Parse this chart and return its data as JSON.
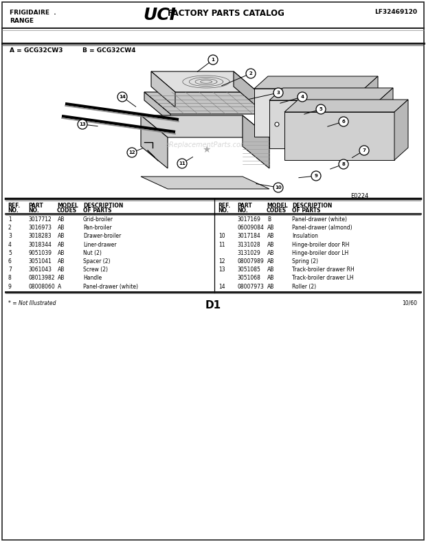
{
  "title_left_line1": "FRIGIDAIRE  .",
  "title_left_line2": "RANGE",
  "title_logo": "UCI",
  "title_center": "FACTORY PARTS CATALOG",
  "title_right": "LF32469120",
  "model_line_a": "A = GCG32CW3",
  "model_line_b": "B = GCG32CW4",
  "diagram_code": "E0224",
  "page_label": "D1",
  "page_date": "10/60",
  "footnote": "* = Not Illustrated",
  "bg_color": "#ffffff",
  "left_parts": [
    [
      "1",
      "3017712",
      "AB",
      "Grid-broiler"
    ],
    [
      "2",
      "3016973",
      "AB",
      "Pan-broiler"
    ],
    [
      "3",
      "3018283",
      "AB",
      "Drawer-broiler"
    ],
    [
      "4",
      "3018344",
      "AB",
      "Liner-drawer"
    ],
    [
      "5",
      "9051039",
      "AB",
      "Nut (2)"
    ],
    [
      "6",
      "3051041",
      "AB",
      "Spacer (2)"
    ],
    [
      "7",
      "3061043",
      "AB",
      "Screw (2)"
    ],
    [
      "8",
      "08013982",
      "AB",
      "Handle"
    ],
    [
      "9",
      "08008060",
      "A",
      "Panel-drawer (white)"
    ]
  ],
  "right_parts": [
    [
      "",
      "3017169",
      "B",
      "Panel-drawer (white)"
    ],
    [
      "",
      "06009084",
      "AB",
      "Panel-drawer (almond)"
    ],
    [
      "10",
      "3017184",
      "AB",
      "Insulation"
    ],
    [
      "11",
      "3131028",
      "AB",
      "Hinge-broiler door RH"
    ],
    [
      "",
      "3131029",
      "AB",
      "Hinge-broiler door LH"
    ],
    [
      "12",
      "08007989",
      "AB",
      "Spring (2)"
    ],
    [
      "13",
      "3051085",
      "AB",
      "Track-broiler drawer RH"
    ],
    [
      "",
      "3051068",
      "AB",
      "Track-broiler drawer LH"
    ],
    [
      "14",
      "08007973",
      "AB",
      "Roller (2)"
    ]
  ],
  "watermark": "eReplacementParts.com"
}
